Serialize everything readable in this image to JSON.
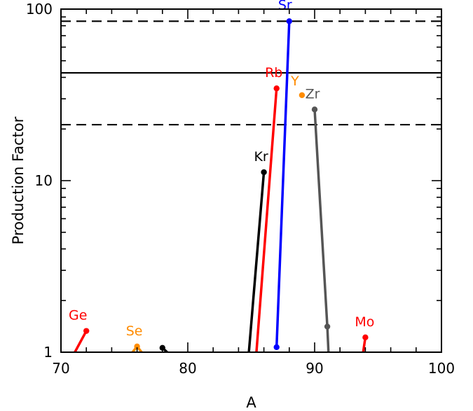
{
  "chart_data": {
    "type": "line",
    "title": "",
    "xlabel": "A",
    "ylabel": "Production Factor",
    "xlim": [
      70,
      100
    ],
    "ylim": [
      1,
      100
    ],
    "yscale": "log",
    "x_ticks": [
      "70",
      "80",
      "90",
      "100"
    ],
    "y_ticks": [
      "1",
      "10",
      "100"
    ],
    "grid": false,
    "legend": "none",
    "reference_lines": [
      {
        "y": 42.5,
        "style": "solid"
      },
      {
        "y": 85,
        "style": "dashed"
      },
      {
        "y": 21.2,
        "style": "dashed"
      }
    ],
    "series": [
      {
        "label": "Ge",
        "color": "#ff0000",
        "x": [
          71,
          72
        ],
        "y": [
          0.97,
          1.33
        ]
      },
      {
        "label": "Se",
        "color": "#ff8c00",
        "x": [
          75.5,
          76,
          76.5
        ],
        "y": [
          0.97,
          1.08,
          0.97
        ]
      },
      {
        "label": "",
        "color": "#000000",
        "x": [
          78,
          78.5
        ],
        "y": [
          1.06,
          0.98
        ]
      },
      {
        "label": "Kr",
        "color": "#000000",
        "x": [
          84.8,
          86
        ],
        "y": [
          0.97,
          11.2
        ]
      },
      {
        "label": "Rb",
        "color": "#ff0000",
        "x": [
          85.4,
          87
        ],
        "y": [
          0.97,
          34.5
        ]
      },
      {
        "label": "Sr",
        "color": "#0000ff",
        "x": [
          87,
          88
        ],
        "y": [
          1.07,
          85
        ]
      },
      {
        "label": "Y",
        "color": "#ff8c00",
        "x": [
          89
        ],
        "y": [
          31.5
        ]
      },
      {
        "label": "Zr",
        "color": "#555555",
        "x": [
          90,
          91,
          91.1
        ],
        "y": [
          26,
          1.41,
          0.97
        ]
      },
      {
        "label": "Mo",
        "color": "#ff0000",
        "x": [
          93.8,
          94
        ],
        "y": [
          0.97,
          1.22
        ]
      }
    ]
  }
}
